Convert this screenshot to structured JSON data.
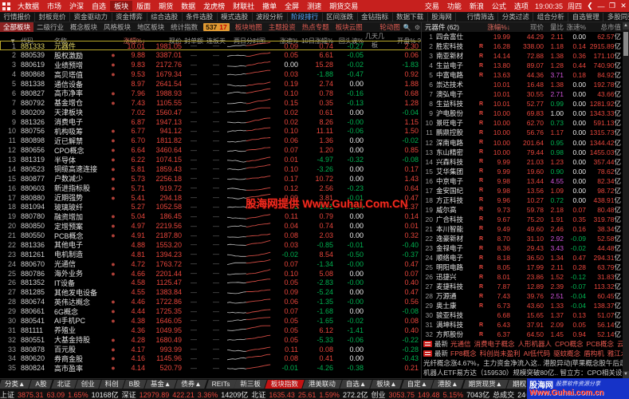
{
  "window": {
    "time": "19:00:35",
    "day": "周四"
  },
  "menu": {
    "items": [
      "大数据",
      "市场",
      "沪深",
      "自选",
      "板块",
      "版面",
      "期货",
      "数据",
      "龙虎榜",
      "财联社",
      "撤单",
      "全屏",
      "测速",
      "期货交易"
    ],
    "active": "板块",
    "right_items": [
      "交易",
      "功能",
      "新浪",
      "公式",
      "选项"
    ]
  },
  "toolbar": {
    "items": [
      "行情报价",
      "封板竞价",
      "资金驱动力",
      "资金博弈",
      "综合选股",
      "条件选股",
      "模式选股",
      "波段分析",
      "阶段排行",
      "区间涨跌",
      "金钻指标",
      "数据下载",
      "股海网"
    ],
    "active": "阶段排行",
    "right_items": [
      "行情筛选",
      "分类过滤",
      "组合分析",
      "自选管理",
      "多股同列",
      "综合排名",
      "定制版面"
    ]
  },
  "tabsrow": {
    "tabs": [
      "全部板块",
      "二级行业",
      "概念板块",
      "风格板块",
      "地区板块",
      "统计指数"
    ],
    "active": "全部板块",
    "badge_up": "537",
    "badge_down": "17",
    "hot_items": [
      "板块地图",
      "主题投资",
      "热点专题",
      "板块云图"
    ],
    "right_label": "轮动图"
  },
  "left_table": {
    "headers": [
      "▼",
      "代码",
      "名称",
      "·",
      "涨幅%",
      "现价",
      "封单额",
      "连板天",
      "两日分时图",
      "涨速%",
      "10日涨幅%",
      "回头波%",
      "几天几板",
      "开盘% ?"
    ],
    "rows": [
      [
        "1",
        "881333",
        "元器件",
        0,
        "10.01",
        "1981.05",
        "0.09",
        "0.74",
        "-0.27",
        "2.30"
      ],
      [
        "2",
        "880539",
        "股权激励",
        1,
        "9.88",
        "3387.01",
        "0.05",
        "6.61",
        "-0.05",
        "0.06"
      ],
      [
        "3",
        "880619",
        "业绩预增",
        1,
        "9.83",
        "2172.76",
        "0.00",
        "15.28",
        "-0.02",
        "-1.83"
      ],
      [
        "4",
        "880868",
        "高贝塔值",
        1,
        "9.53",
        "1679.34",
        "0.03",
        "-1.88",
        "-0.47",
        "0.92"
      ],
      [
        "5",
        "881338",
        "通信设备",
        0,
        "8.97",
        "2641.54",
        "0.19",
        "2.74",
        "0.00",
        "1.88"
      ],
      [
        "6",
        "880827",
        "高市净率",
        1,
        "7.96",
        "1988.93",
        "0.10",
        "0.78",
        "-0.16",
        "0.68"
      ],
      [
        "7",
        "880792",
        "基金增仓",
        1,
        "7.43",
        "1105.55",
        "0.15",
        "0.35",
        "-0.13",
        "1.28"
      ],
      [
        "8",
        "880209",
        "天津板块",
        0,
        "7.02",
        "1560.47",
        "0.02",
        "0.61",
        "0.00",
        "-0.04"
      ],
      [
        "9",
        "881326",
        "消费电子",
        0,
        "6.87",
        "1947.13",
        "0.02",
        "8.26",
        "-0.00",
        "1.15"
      ],
      [
        "10",
        "880756",
        "机构吸筹",
        1,
        "6.77",
        "941.12",
        "0.10",
        "11.11",
        "-0.06",
        "1.50"
      ],
      [
        "11",
        "880898",
        "近已解禁",
        1,
        "6.70",
        "1811.82",
        "0.06",
        "1.36",
        "0.00",
        "-0.02"
      ],
      [
        "12",
        "880656",
        "CPO概念",
        1,
        "6.64",
        "3460.64",
        "0.07",
        "1.20",
        "0.00",
        "0.85"
      ],
      [
        "13",
        "881319",
        "半导体",
        1,
        "6.22",
        "1074.15",
        "0.01",
        "-4.97",
        "-0.32",
        "-0.08"
      ],
      [
        "14",
        "880523",
        "铜缆高速连接",
        1,
        "5.81",
        "1859.43",
        "0.10",
        "-3.26",
        "0.00",
        "0.17"
      ],
      [
        "15",
        "880877",
        "户数减少",
        1,
        "5.73",
        "2256.18",
        "0.17",
        "10.72",
        "0.00",
        "1.43"
      ],
      [
        "16",
        "880603",
        "新进指标股",
        1,
        "5.71",
        "919.72",
        "0.12",
        "2.56",
        "-0.23",
        "0.64"
      ],
      [
        "17",
        "880880",
        "近期强势",
        1,
        "5.41",
        "294.18",
        "0.09",
        "3.81",
        "-0.01",
        "0.47"
      ],
      [
        "18",
        "881094",
        "玻璃玻纤",
        0,
        "5.27",
        "1052.58",
        "-0.03",
        "-1.81",
        "-1.04",
        "2.37"
      ],
      [
        "19",
        "880780",
        "融资增加",
        1,
        "5.04",
        "186.45",
        "0.11",
        "0.79",
        "0.00",
        "0.14"
      ],
      [
        "20",
        "880850",
        "定增预案",
        1,
        "4.97",
        "2219.56",
        "0.04",
        "0.74",
        "0.00",
        "0.01"
      ],
      [
        "21",
        "880550",
        "PCB概念",
        1,
        "4.91",
        "2187.80",
        "0.08",
        "2.03",
        "0.00",
        "0.32"
      ],
      [
        "22",
        "881336",
        "其他电子",
        0,
        "4.88",
        "1553.20",
        "0.03",
        "-0.85",
        "-0.01",
        "-0.40"
      ],
      [
        "23",
        "881261",
        "电机制造",
        0,
        "4.81",
        "1394.23",
        "-0.02",
        "8.54",
        "-0.50",
        "-0.37"
      ],
      [
        "24",
        "880670",
        "光通信",
        1,
        "4.72",
        "1763.72",
        "0.07",
        "-1.34",
        "-0.00",
        "0.47"
      ],
      [
        "25",
        "880786",
        "海外业务",
        1,
        "4.66",
        "2201.44",
        "0.10",
        "5.08",
        "0.00",
        "0.07"
      ],
      [
        "26",
        "881352",
        "IT设备",
        0,
        "4.58",
        "1125.47",
        "0.05",
        "-2.83",
        "-0.00",
        "0.40"
      ],
      [
        "27",
        "881285",
        "其他发电设备",
        0,
        "4.55",
        "1383.84",
        "0.09",
        "-5.24",
        "0.00",
        "0.47"
      ],
      [
        "28",
        "880674",
        "英伟达概念",
        1,
        "4.46",
        "1722.86",
        "0.06",
        "-1.35",
        "-0.00",
        "0.56"
      ],
      [
        "29",
        "880661",
        "6G概念",
        1,
        "4.44",
        "1725.35",
        "0.07",
        "-1.68",
        "0.00",
        "-0.08"
      ],
      [
        "30",
        "880541",
        "AI手机PC",
        1,
        "4.38",
        "1646.05",
        "0.05",
        "-1.65",
        "-0.02",
        "0.08"
      ],
      [
        "31",
        "881111",
        "养殖业",
        0,
        "4.36",
        "1049.95",
        "0.05",
        "6.12",
        "-1.41",
        "0.40"
      ],
      [
        "32",
        "880551",
        "大基金持股",
        1,
        "4.28",
        "1680.49",
        "0.05",
        "-5.33",
        "-0.06",
        "-0.22"
      ],
      [
        "33",
        "880878",
        "百元股",
        1,
        "4.17",
        "993.99",
        "0.11",
        "0.08",
        "0.00",
        "-0.28"
      ],
      [
        "34",
        "880620",
        "券商金股",
        1,
        "4.16",
        "1145.96",
        "0.08",
        "0.41",
        "0.00",
        "-0.43"
      ],
      [
        "35",
        "880824",
        "高市盈率",
        1,
        "4.14",
        "520.79",
        "-0.01",
        "-4.26",
        "-0.38",
        "0.21"
      ]
    ]
  },
  "right_panel": {
    "title": "元器件 (62)",
    "headers": [
      "涨幅%",
      "现价",
      "量比",
      "涨速%",
      "总市值"
    ],
    "rows": [
      [
        "1",
        "四会富仕",
        0,
        "19.99",
        "44.29",
        "2.11",
        "0.00",
        "62.57亿"
      ],
      [
        "2",
        "胜宏科技",
        1,
        "16.28",
        "338.00",
        "1.18",
        "0.14",
        "2915.89亿"
      ],
      [
        "3",
        "南亚新材",
        1,
        "14.14",
        "72.88",
        "1.38",
        "0.36",
        "171.10亿"
      ],
      [
        "4",
        "生益电子",
        1,
        "13.80",
        "89.07",
        "1.28",
        "0.44",
        "740.90亿"
      ],
      [
        "5",
        "中富电路",
        1,
        "13.63",
        "44.36",
        "3.71",
        "0.18",
        "84.92亿"
      ],
      [
        "6",
        "崇达技术",
        0,
        "10.01",
        "16.48",
        "1.38",
        "0.00",
        "192.78亿"
      ],
      [
        "7",
        "澳弘电子",
        0,
        "10.01",
        "30.55",
        "2.71",
        "0.00",
        "43.66亿"
      ],
      [
        "8",
        "生益科技",
        1,
        "10.01",
        "52.77",
        "0.99",
        "0.00",
        "1281.92亿"
      ],
      [
        "9",
        "沪电股份",
        1,
        "10.00",
        "69.83",
        "1.00",
        "0.00",
        "1343.33亿"
      ],
      [
        "10",
        "景旺电子",
        1,
        "10.00",
        "62.70",
        "0.73",
        "0.00",
        "591.13亿"
      ],
      [
        "11",
        "鹏鼎控股",
        1,
        "10.00",
        "56.76",
        "1.17",
        "0.00",
        "1315.73亿"
      ],
      [
        "12",
        "深南电路",
        1,
        "10.00",
        "201.64",
        "0.95",
        "0.00",
        "1344.42亿"
      ],
      [
        "13",
        "东山精密",
        1,
        "10.00",
        "79.44",
        "0.98",
        "0.00",
        "1455.03亿"
      ],
      [
        "14",
        "兴森科技",
        1,
        "9.99",
        "21.03",
        "1.23",
        "0.00",
        "357.44亿"
      ],
      [
        "15",
        "艾华集团",
        1,
        "9.99",
        "19.60",
        "0.90",
        "0.00",
        "78.62亿"
      ],
      [
        "16",
        "中京电子",
        1,
        "9.98",
        "13.44",
        "4.55",
        "0.00",
        "82.34亿"
      ],
      [
        "17",
        "金安国纪",
        1,
        "9.98",
        "13.56",
        "1.09",
        "0.00",
        "98.72亿"
      ],
      [
        "18",
        "方正科技",
        1,
        "9.96",
        "10.27",
        "0.72",
        "0.00",
        "438.91亿"
      ],
      [
        "19",
        "威尔高",
        1,
        "9.73",
        "59.78",
        "2.18",
        "0.07",
        "80.48亿"
      ],
      [
        "20",
        "广合科技",
        1,
        "9.67",
        "75.20",
        "1.91",
        "0.35",
        "319.78亿"
      ],
      [
        "21",
        "本川智能",
        1,
        "9.49",
        "49.60",
        "2.46",
        "0.16",
        "38.34亿"
      ],
      [
        "22",
        "逸豪新材",
        1,
        "8.70",
        "31.10",
        "2.92",
        "-0.09",
        "52.58亿"
      ],
      [
        "23",
        "金禄电子",
        1,
        "8.36",
        "29.43",
        "3.43",
        "-0.02",
        "44.48亿"
      ],
      [
        "24",
        "顺络电子",
        1,
        "8.18",
        "36.50",
        "1.34",
        "0.47",
        "294.31亿"
      ],
      [
        "25",
        "明阳电路",
        1,
        "8.05",
        "17.99",
        "2.11",
        "0.28",
        "63.79亿"
      ],
      [
        "26",
        "迅捷兴",
        1,
        "8.01",
        "23.86",
        "1.52",
        "-0.12",
        "31.83亿"
      ],
      [
        "27",
        "麦捷科技",
        1,
        "7.87",
        "12.89",
        "2.39",
        "-0.07",
        "113.32亿"
      ],
      [
        "28",
        "万源通",
        1,
        "7.43",
        "39.76",
        "2.51",
        "-0.04",
        "60.45亿"
      ],
      [
        "29",
        "奥士康",
        1,
        "6.73",
        "43.60",
        "1.33",
        "-0.04",
        "138.37亿"
      ],
      [
        "30",
        "骏亚科技",
        0,
        "6.68",
        "15.65",
        "1.37",
        "0.13",
        "51.07亿"
      ],
      [
        "31",
        "满坤科技",
        1,
        "6.43",
        "37.91",
        "2.09",
        "0.05",
        "56.14亿"
      ],
      [
        "32",
        "方邦股份",
        1,
        "6.37",
        "64.50",
        "1.45",
        "0.94",
        "52.14亿"
      ]
    ],
    "news": [
      {
        "prefix": "最新",
        "links": [
          "光通信",
          "消费电子概念",
          "人形机器人",
          "CPO概念",
          "PCB概念",
          "云计算"
        ]
      },
      {
        "prefix": "最新",
        "links": [
          "FP8概念",
          "科创尚未盈利",
          "AI低代码",
          "驱蚊概念",
          "盾构机",
          "雅江水电概念"
        ]
      }
    ],
    "tickers": [
      "光纤概念涨4.67%，主力资金净流入这..  港股异动|苹果概念股午后走高 四季度..",
      "机器人ETF易方达（159530）规模突破80亿..  智立方：CPO相关设备销售稳步增.."
    ]
  },
  "watermark": "股海网提供 Www.Guhai.Com.CN",
  "bottom": {
    "tabs": [
      "分类▲",
      "A股",
      "北证",
      "创业",
      "科创",
      "B股",
      "基金▲",
      "债券▲",
      "REITs",
      "新三板",
      "板块指数",
      "港美联动",
      "自选▲",
      "板块▲",
      "自定▲",
      "港股▲",
      "期货现货▲",
      "期权▲",
      "基金理财▲",
      "环球行情▲",
      "其它▲"
    ],
    "active": "板块指数",
    "indices": [
      {
        "name": "上证",
        "value": "3875.31",
        "chg": "63.09",
        "pct": "1.65%",
        "amt": "10168亿"
      },
      {
        "name": "深证",
        "value": "12979.89",
        "chg": "422.21",
        "pct": "3.36%",
        "amt": "14209亿"
      },
      {
        "name": "北证",
        "value": "1635.43",
        "chg": "25.61",
        "pct": "1.59%",
        "amt": "272.2亿"
      },
      {
        "name": "创业",
        "value": "3053.75",
        "chg": "149.48",
        "pct": "5.15%",
        "amt": "7043亿"
      }
    ],
    "total_label": "总成交",
    "total_value": "24649亿",
    "station": "南京行情Z148",
    "x724_label": "7x24",
    "logo": {
      "name": "股海网",
      "slogan": "股票软件资源分享",
      "url": "Www.Guhai.com.cn"
    }
  },
  "colors": {
    "up": "#e8463c",
    "down": "#00b050",
    "neutral": "#ececec",
    "ratio_high": "#cf52d8",
    "menubar": "#c6201e",
    "accent_blue": "#58a8ff"
  }
}
